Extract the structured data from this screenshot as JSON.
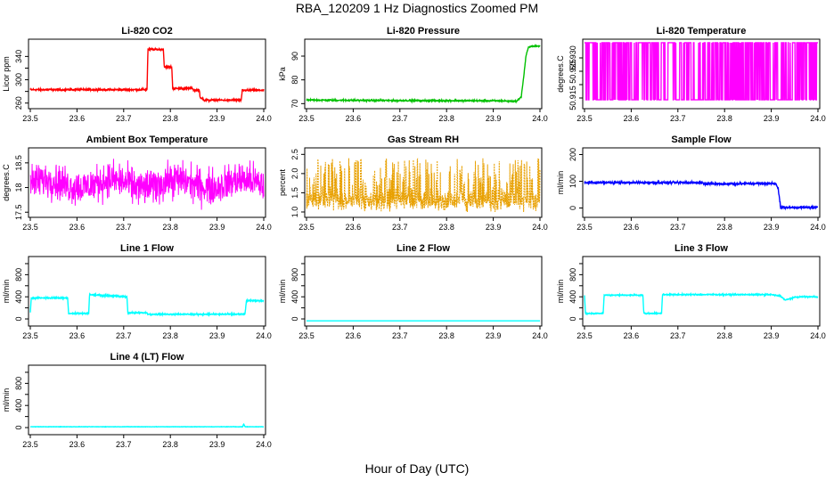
{
  "page": {
    "title": "RBA_120209  1 Hz Diagnostics Zoomed PM",
    "xlabel": "Hour of Day (UTC)"
  },
  "chart_data": [
    {
      "type": "line",
      "title": "Li-820 CO2",
      "ylabel": "Licor ppm",
      "xlim": [
        23.5,
        24.0
      ],
      "ylim": [
        255,
        365
      ],
      "xticks": [
        "23.5",
        "23.6",
        "23.7",
        "23.8",
        "23.9",
        "24.0"
      ],
      "yticks": [
        260,
        280,
        300,
        320,
        340
      ],
      "ytick_labels": [
        "260",
        "",
        "300",
        "",
        "340"
      ],
      "color": "#ff0000",
      "style": "steps",
      "noise": 1.5,
      "series": [
        {
          "x": [
            23.5,
            23.75,
            23.752,
            23.785,
            23.787,
            23.803,
            23.805,
            23.848,
            23.85,
            23.862,
            23.864,
            23.87,
            23.872,
            23.93,
            23.932,
            23.952,
            23.954,
            23.96,
            23.962,
            24.0
          ],
          "y": [
            283,
            283,
            352,
            352,
            322,
            322,
            285,
            285,
            282,
            282,
            268,
            268,
            265,
            265,
            265,
            265,
            282,
            282,
            282,
            282
          ]
        }
      ]
    },
    {
      "type": "line",
      "title": "Li-820 Pressure",
      "ylabel": "kPa",
      "xlim": [
        23.5,
        24.0
      ],
      "ylim": [
        69,
        96
      ],
      "xticks": [
        "23.5",
        "23.6",
        "23.7",
        "23.8",
        "23.9",
        "24.0"
      ],
      "yticks": [
        70,
        80,
        90
      ],
      "ytick_labels": [
        "70",
        "80",
        "90"
      ],
      "color": "#00c000",
      "style": "points",
      "noise": 0.3,
      "series": [
        {
          "x": [
            23.5,
            23.7,
            23.9,
            23.95,
            23.96,
            23.965,
            23.97,
            23.975,
            23.98,
            23.985,
            24.0
          ],
          "y": [
            71.5,
            71.3,
            71.2,
            71,
            73,
            81,
            90,
            93.5,
            94.2,
            94.2,
            94.2
          ]
        }
      ]
    },
    {
      "type": "line",
      "title": "Li-820 Temperature",
      "ylabel": "degrees.C",
      "xlim": [
        23.5,
        24.0
      ],
      "ylim": [
        50.912,
        50.936
      ],
      "xticks": [
        "23.5",
        "23.6",
        "23.7",
        "23.8",
        "23.9",
        "24.0"
      ],
      "yticks": [
        50.915,
        50.92,
        50.925,
        50.93
      ],
      "ytick_labels": [
        "50.915",
        "",
        "50.925",
        "50.930"
      ],
      "color": "#ff00ff",
      "style": "binary",
      "levels": [
        50.9143,
        50.9357
      ],
      "series": []
    },
    {
      "type": "line",
      "title": "Ambient Box Temperature",
      "ylabel": "degrees.C",
      "xlim": [
        23.5,
        24.0
      ],
      "ylim": [
        17.45,
        18.75
      ],
      "xticks": [
        "23.5",
        "23.6",
        "23.7",
        "23.8",
        "23.9",
        "24.0"
      ],
      "yticks": [
        17.5,
        18.0,
        18.5
      ],
      "ytick_labels": [
        "17.5",
        "18",
        "18.5"
      ],
      "color": "#ff00ff",
      "style": "noise",
      "mean": 18.08,
      "amp": 0.32,
      "series": []
    },
    {
      "type": "line",
      "title": "Gas Stream RH",
      "ylabel": "percent",
      "xlim": [
        23.5,
        24.0
      ],
      "ylim": [
        0.93,
        2.6
      ],
      "xticks": [
        "23.5",
        "23.6",
        "23.7",
        "23.8",
        "23.9",
        "24.0"
      ],
      "yticks": [
        1.0,
        1.5,
        2.0,
        2.5
      ],
      "ytick_labels": [
        "1.0",
        "1.5",
        "2.0",
        "2.5"
      ],
      "color": "#e8a000",
      "style": "spiky",
      "base": 1.3,
      "series": []
    },
    {
      "type": "line",
      "title": "Sample Flow",
      "ylabel": "ml/min",
      "xlim": [
        23.5,
        24.0
      ],
      "ylim": [
        -25,
        215
      ],
      "xticks": [
        "23.5",
        "23.6",
        "23.7",
        "23.8",
        "23.9",
        "24.0"
      ],
      "yticks": [
        0,
        100,
        200
      ],
      "ytick_labels": [
        "0",
        "100",
        "200"
      ],
      "color": "#0000ff",
      "style": "steps",
      "noise": 4,
      "series": [
        {
          "x": [
            23.5,
            23.75,
            23.76,
            23.91,
            23.915,
            23.92,
            24.0
          ],
          "y": [
            95,
            95,
            90,
            92,
            70,
            2,
            2
          ]
        }
      ]
    },
    {
      "type": "line",
      "title": "Line 1 Flow",
      "ylabel": "ml/min",
      "xlim": [
        23.5,
        24.0
      ],
      "ylim": [
        -80,
        1080
      ],
      "xticks": [
        "23.5",
        "23.6",
        "23.7",
        "23.8",
        "23.9",
        "24.0"
      ],
      "yticks": [
        0,
        200,
        400,
        600,
        800,
        1000
      ],
      "ytick_labels": [
        "0",
        "",
        "400",
        "",
        "800",
        ""
      ],
      "color": "#00ffff",
      "style": "steps",
      "noise": 12,
      "series": [
        {
          "x": [
            23.5,
            23.502,
            23.508,
            23.58,
            23.582,
            23.625,
            23.627,
            23.707,
            23.709,
            23.75,
            23.752,
            23.958,
            23.96,
            23.963,
            24.0
          ],
          "y": [
            110,
            380,
            380,
            380,
            100,
            100,
            440,
            400,
            110,
            110,
            85,
            85,
            100,
            330,
            330
          ]
        }
      ]
    },
    {
      "type": "line",
      "title": "Line 2 Flow",
      "ylabel": "ml/min",
      "xlim": [
        23.5,
        24.0
      ],
      "ylim": [
        -80,
        1080
      ],
      "xticks": [
        "23.5",
        "23.6",
        "23.7",
        "23.8",
        "23.9",
        "24.0"
      ],
      "yticks": [
        0,
        200,
        400,
        600,
        800,
        1000
      ],
      "ytick_labels": [
        "0",
        "",
        "400",
        "",
        "800",
        ""
      ],
      "color": "#00ffff",
      "style": "steps",
      "noise": 0,
      "series": [
        {
          "x": [
            23.5,
            24.0
          ],
          "y": [
            -35,
            -35
          ]
        }
      ]
    },
    {
      "type": "line",
      "title": "Line 3 Flow",
      "ylabel": "ml/min",
      "xlim": [
        23.5,
        24.0
      ],
      "ylim": [
        -80,
        1080
      ],
      "xticks": [
        "23.5",
        "23.6",
        "23.7",
        "23.8",
        "23.9",
        "24.0"
      ],
      "yticks": [
        0,
        200,
        400,
        600,
        800,
        1000
      ],
      "ytick_labels": [
        "0",
        "",
        "400",
        "",
        "800",
        ""
      ],
      "color": "#00ffff",
      "style": "steps",
      "noise": 10,
      "series": [
        {
          "x": [
            23.5,
            23.502,
            23.51,
            23.54,
            23.542,
            23.625,
            23.627,
            23.665,
            23.667,
            23.9,
            23.92,
            23.93,
            23.95,
            23.96,
            24.0
          ],
          "y": [
            420,
            100,
            100,
            100,
            430,
            430,
            100,
            100,
            440,
            440,
            410,
            340,
            390,
            400,
            400
          ]
        }
      ]
    },
    {
      "type": "line",
      "title": "Line 4 (LT) Flow",
      "ylabel": "ml/min",
      "xlim": [
        23.5,
        24.0
      ],
      "ylim": [
        -80,
        1080
      ],
      "xticks": [
        "23.5",
        "23.6",
        "23.7",
        "23.8",
        "23.9",
        "24.0"
      ],
      "yticks": [
        0,
        200,
        400,
        600,
        800,
        1000
      ],
      "ytick_labels": [
        "0",
        "",
        "400",
        "",
        "800",
        ""
      ],
      "color": "#00ffff",
      "style": "steps",
      "noise": 3,
      "series": [
        {
          "x": [
            23.5,
            23.955,
            23.957,
            23.96,
            23.962,
            24.0
          ],
          "y": [
            15,
            15,
            65,
            15,
            15,
            15
          ]
        }
      ]
    }
  ]
}
